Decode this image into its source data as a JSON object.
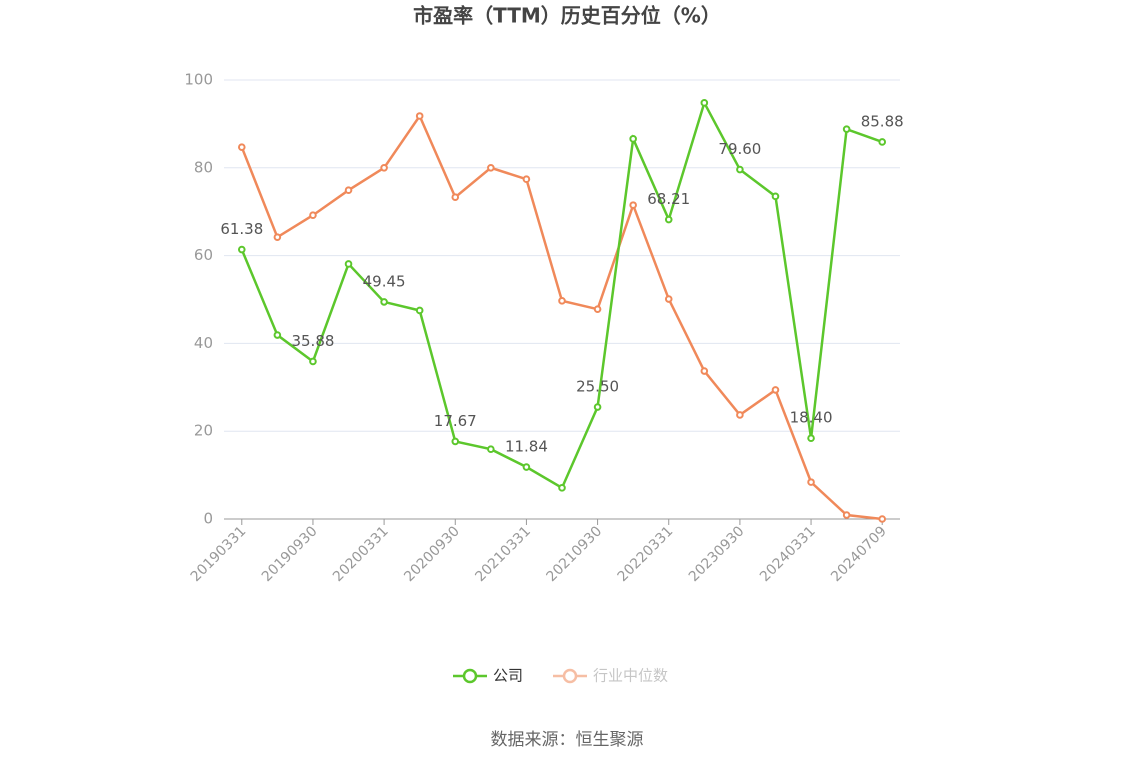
{
  "chart_data": {
    "type": "line",
    "title": "市盈率（TTM）历史百分位（%）",
    "categories": [
      "20190331",
      null,
      "20190930",
      null,
      "20200331",
      null,
      "20200930",
      null,
      "20210331",
      null,
      "20210930",
      null,
      "20220331",
      null,
      "20230930",
      null,
      "20240331",
      null,
      "20240709"
    ],
    "series": [
      {
        "name": "公司",
        "color": "#5cc72c",
        "values": [
          61.38,
          41.9,
          35.88,
          58.1,
          49.45,
          47.5,
          17.67,
          15.9,
          11.84,
          7.1,
          25.5,
          86.6,
          68.21,
          94.8,
          79.6,
          73.5,
          18.4,
          88.8,
          85.88
        ],
        "value_labels": [
          "61.38",
          null,
          "35.88",
          null,
          "49.45",
          null,
          "17.67",
          null,
          "11.84",
          null,
          "25.50",
          null,
          "68.21",
          null,
          "79.60",
          null,
          "18.40",
          null,
          "85.88"
        ]
      },
      {
        "name": "行业中位数",
        "color": "#f0895a",
        "values": [
          84.7,
          64.2,
          69.2,
          74.9,
          80.0,
          91.8,
          73.3,
          80.0,
          77.4,
          49.7,
          47.8,
          71.5,
          50.1,
          33.7,
          23.7,
          29.4,
          8.4,
          0.9,
          0
        ]
      }
    ],
    "ylim": [
      0,
      100
    ],
    "yticks": [
      0,
      20,
      40,
      60,
      80,
      100
    ],
    "grid": true,
    "legend": "bottom",
    "source": "数据来源：恒生聚源"
  }
}
